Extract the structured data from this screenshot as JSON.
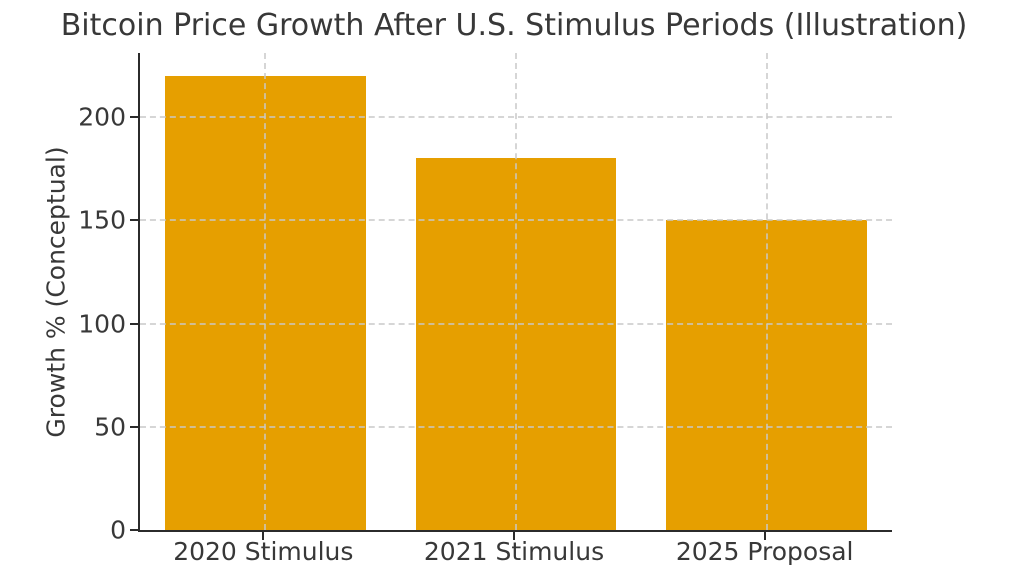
{
  "figure": {
    "background": "#ffffff"
  },
  "chart_data": {
    "type": "bar",
    "title": "Bitcoin Price Growth After U.S. Stimulus Periods (Illustration)",
    "xlabel": "",
    "ylabel": "Growth % (Conceptual)",
    "categories": [
      "2020 Stimulus",
      "2021 Stimulus",
      "2025 Proposal"
    ],
    "values": [
      220,
      180,
      150
    ],
    "yticks": [
      0,
      50,
      100,
      150,
      200
    ],
    "ylim": [
      0,
      231
    ],
    "bar_color": "#E69F00",
    "grid": true,
    "grid_style": "dashed",
    "grid_color": "#c9c9c9",
    "axis_color": "#2b2b2b",
    "text_color": "#383838",
    "legend": "none"
  }
}
